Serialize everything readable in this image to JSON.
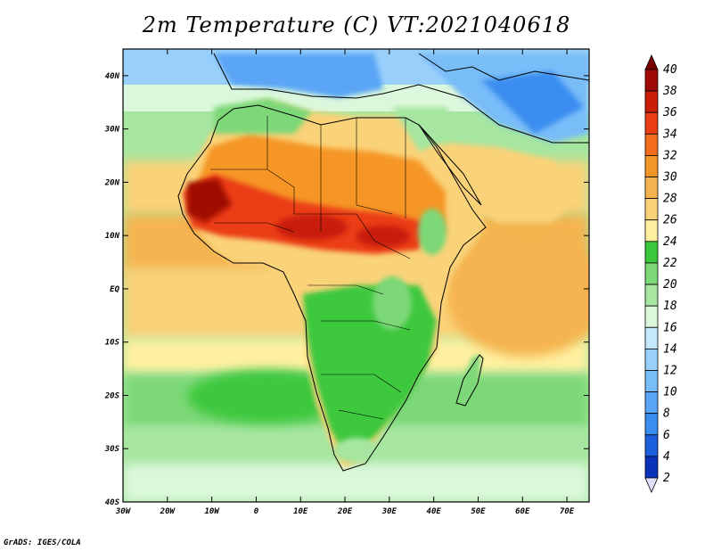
{
  "title": "2m Temperature (C) VT:2021040618",
  "credit": "GrADS: IGES/COLA",
  "map": {
    "lon_ticks": [
      "30W",
      "20W",
      "10W",
      "0",
      "10E",
      "20E",
      "30E",
      "40E",
      "50E",
      "60E",
      "70E"
    ],
    "lat_ticks": [
      "40N",
      "30N",
      "20N",
      "10N",
      "EQ",
      "10S",
      "20S",
      "30S",
      "40S"
    ],
    "lon_range": [
      -30,
      75
    ],
    "lat_range": [
      -40,
      45
    ]
  },
  "colorbar": {
    "levels": [
      "2",
      "4",
      "6",
      "8",
      "10",
      "12",
      "14",
      "16",
      "18",
      "20",
      "22",
      "24",
      "26",
      "28",
      "30",
      "32",
      "34",
      "36",
      "38",
      "40"
    ],
    "colors": [
      "#080c6e",
      "#0a32b8",
      "#1c5fdc",
      "#3a8ef0",
      "#5aa5f5",
      "#78bcf8",
      "#99d0fb",
      "#c4e8fc",
      "#dcf8dc",
      "#a6e6a0",
      "#7dd878",
      "#3cc83c",
      "#fff0a0",
      "#fad278",
      "#f5b450",
      "#f59628",
      "#f56e1e",
      "#eb3c14",
      "#c81e0a",
      "#a00a06",
      "#780000"
    ],
    "bottom_color": "#e0e0ff",
    "top_color": "#780000"
  }
}
